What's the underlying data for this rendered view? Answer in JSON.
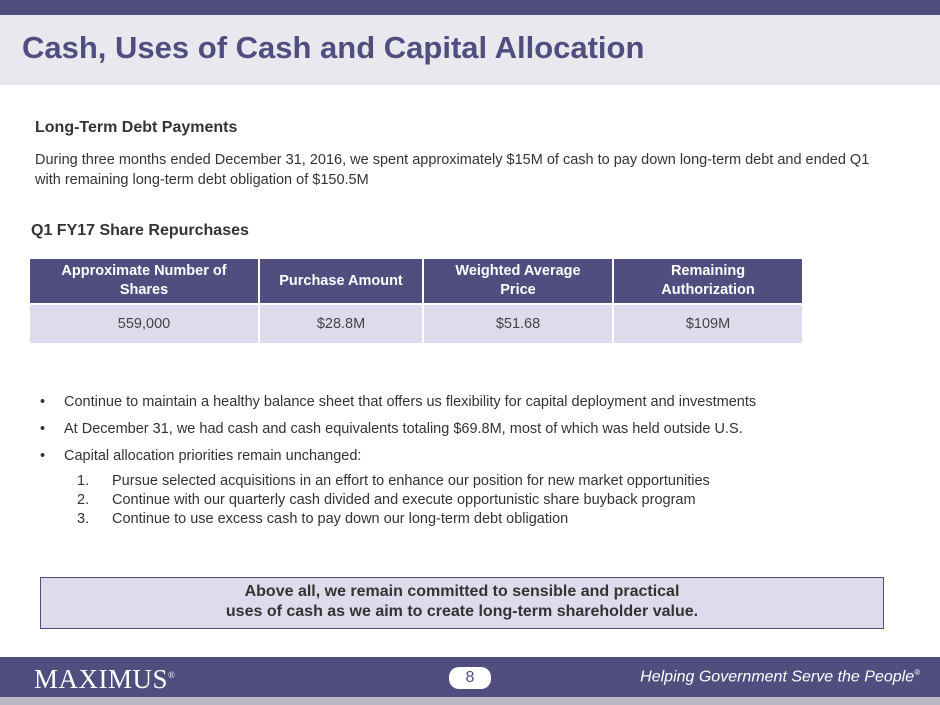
{
  "header": {
    "title": "Cash, Uses of Cash and Capital Allocation"
  },
  "debt": {
    "heading": "Long-Term Debt Payments",
    "text": "During three months ended December 31, 2016, we spent approximately $15M of cash to pay down long-term debt and ended Q1 with remaining long-term debt obligation of $150.5M"
  },
  "repurchases": {
    "heading": "Q1 FY17 Share Repurchases",
    "table": {
      "columns": [
        "Approximate Number of Shares",
        "Purchase Amount",
        "Weighted  Average Price",
        "Remaining Authorization"
      ],
      "rows": [
        [
          "559,000",
          "$28.8M",
          "$51.68",
          "$109M"
        ]
      ]
    }
  },
  "bullets": [
    "Continue to maintain a healthy balance sheet that offers us flexibility for capital deployment and investments",
    "At December 31, we had cash and cash equivalents totaling $69.8M, most of which was held outside U.S.",
    "Capital allocation priorities remain unchanged:"
  ],
  "priorities": [
    {
      "number": "1.",
      "text": "Pursue selected acquisitions in an effort to enhance our position for new market opportunities"
    },
    {
      "number": "2.",
      "text": "Continue with our quarterly cash divided and execute opportunistic share buyback program"
    },
    {
      "number": "3.",
      "text": "Continue to use excess cash to pay down our long-term debt obligation"
    }
  ],
  "callout": [
    "Above all, we remain committed to sensible and practical",
    "uses of cash as we aim to create long-term shareholder value."
  ],
  "footer": {
    "logo": "MAXIMUS",
    "logo_mark": "®",
    "page": "8",
    "tagline": "Helping Government Serve the People",
    "tagline_mark": "®"
  }
}
